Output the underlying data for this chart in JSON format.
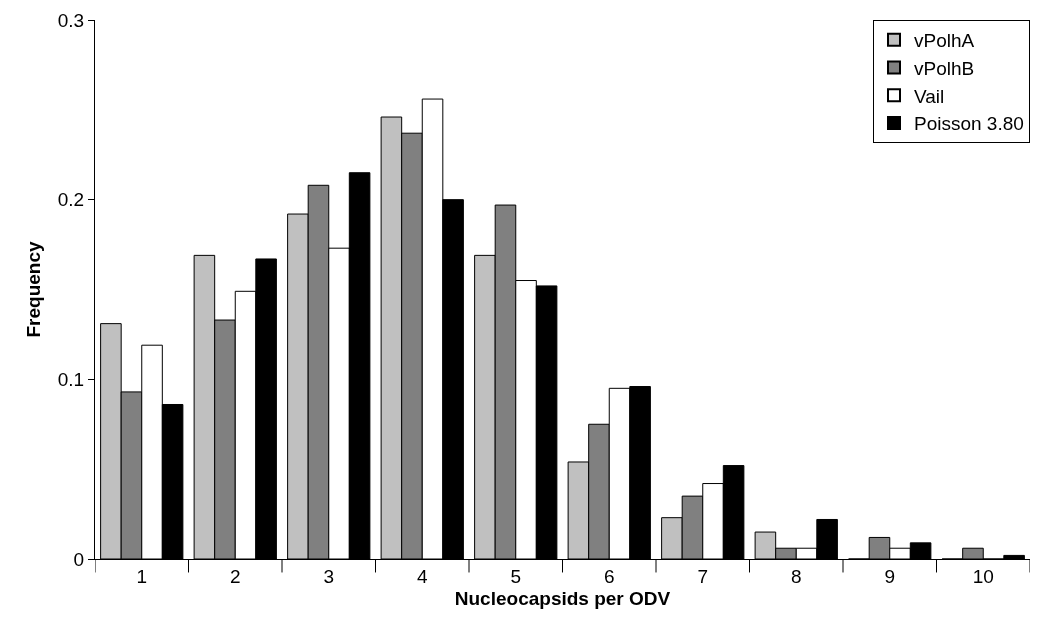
{
  "chart_data": {
    "type": "bar",
    "xlabel": "Nucleocapsids per ODV",
    "ylabel": "Frequency",
    "categories": [
      "1",
      "2",
      "3",
      "4",
      "5",
      "6",
      "7",
      "8",
      "9",
      "10"
    ],
    "series": [
      {
        "name": "vPolhA",
        "color": "#c0c0c0",
        "values": [
          0.131,
          0.169,
          0.192,
          0.246,
          0.169,
          0.054,
          0.023,
          0.015,
          0,
          0
        ]
      },
      {
        "name": "vPolhB",
        "color": "#808080",
        "values": [
          0.093,
          0.133,
          0.208,
          0.237,
          0.197,
          0.075,
          0.035,
          0.006,
          0.012,
          0.006
        ]
      },
      {
        "name": "Vail",
        "color": "#ffffff",
        "values": [
          0.119,
          0.149,
          0.173,
          0.256,
          0.155,
          0.095,
          0.042,
          0.006,
          0.006,
          0
        ]
      },
      {
        "name": "Poisson 3.80",
        "color": "#000000",
        "values": [
          0.086,
          0.167,
          0.215,
          0.2,
          0.152,
          0.096,
          0.052,
          0.022,
          0.009,
          0.002
        ]
      }
    ],
    "ylim": [
      0,
      0.3
    ],
    "yticks": [
      0,
      0.1,
      0.2,
      0.3
    ],
    "legend": "top right"
  }
}
